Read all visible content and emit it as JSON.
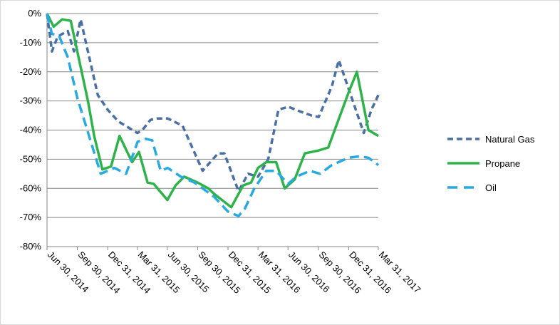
{
  "chart_data": {
    "type": "line",
    "title": "",
    "xlabel": "",
    "ylabel": "",
    "ylim": [
      -80,
      0
    ],
    "y_tick_values": [
      0,
      -10,
      -20,
      -30,
      -40,
      -50,
      -60,
      -70,
      -80
    ],
    "y_tick_labels": [
      "0%",
      "-10%",
      "-20%",
      "-30%",
      "-40%",
      "-50%",
      "-60%",
      "-70%",
      "-80%"
    ],
    "x_start": "Jun 30, 2014",
    "x_end": "Mar 31, 2017",
    "x_tick_labels": [
      "Jun 30, 2014",
      "Sep 30, 2014",
      "Dec 31, 2014",
      "Mar 31, 2015",
      "Jun 30, 2015",
      "Sep 30, 2015",
      "Dec 31, 2015",
      "Mar 31, 2016",
      "Jun 30, 2016",
      "Sep 30, 2016",
      "Dec 31, 2016",
      "Mar 31, 2017"
    ],
    "grid": "horizontal",
    "legend_position": "right",
    "series": [
      {
        "name": "Natural Gas",
        "color": "#4a6fa5",
        "dash": "dashed",
        "points": [
          [
            "Jun 30, 2014",
            0
          ],
          [
            "Jul 15, 2014",
            -13
          ],
          [
            "Aug 1, 2014",
            -8
          ],
          [
            "Aug 15, 2014",
            -7
          ],
          [
            "Sep 1, 2014",
            -6
          ],
          [
            "Sep 20, 2014",
            -13
          ],
          [
            "Oct 10, 2014",
            -2
          ],
          [
            "Dec 1, 2014",
            -28
          ],
          [
            "Dec 31, 2014",
            -33
          ],
          [
            "Feb 1, 2015",
            -37
          ],
          [
            "Mar 31, 2015",
            -41
          ],
          [
            "Apr 15, 2015",
            -40
          ],
          [
            "May 10, 2015",
            -36.5
          ],
          [
            "Jun 1, 2015",
            -36
          ],
          [
            "Jul 1, 2015",
            -36
          ],
          [
            "Aug 15, 2015",
            -38.5
          ],
          [
            "Oct 15, 2015",
            -54
          ],
          [
            "Nov 15, 2015",
            -50
          ],
          [
            "Dec 1, 2015",
            -48
          ],
          [
            "Dec 20, 2015",
            -48
          ],
          [
            "Feb 1, 2016",
            -61
          ],
          [
            "Mar 1, 2016",
            -55
          ],
          [
            "Mar 31, 2016",
            -56
          ],
          [
            "May 1, 2016",
            -50
          ],
          [
            "Jun 1, 2016",
            -33
          ],
          [
            "Jul 1, 2016",
            -32
          ],
          [
            "Aug 15, 2016",
            -34
          ],
          [
            "Sep 10, 2016",
            -35
          ],
          [
            "Oct 1, 2016",
            -35.5
          ],
          [
            "Nov 10, 2016",
            -25
          ],
          [
            "Dec 1, 2016",
            -16
          ],
          [
            "Feb 15, 2017",
            -41
          ],
          [
            "Mar 10, 2017",
            -33
          ],
          [
            "Mar 31, 2017",
            -28
          ]
        ]
      },
      {
        "name": "Propane",
        "color": "#2db34a",
        "dash": "solid",
        "points": [
          [
            "Jun 30, 2014",
            0
          ],
          [
            "Jul 20, 2014",
            -4.5
          ],
          [
            "Aug 15, 2014",
            -2
          ],
          [
            "Sep 10, 2014",
            -2.5
          ],
          [
            "Nov 1, 2014",
            -30
          ],
          [
            "Nov 20, 2014",
            -42
          ],
          [
            "Dec 15, 2014",
            -53.5
          ],
          [
            "Jan 10, 2015",
            -52.5
          ],
          [
            "Feb 5, 2015",
            -42
          ],
          [
            "Mar 15, 2015",
            -51
          ],
          [
            "Apr 5, 2015",
            -47.5
          ],
          [
            "May 1, 2015",
            -58
          ],
          [
            "May 20, 2015",
            -58.5
          ],
          [
            "Jun 30, 2015",
            -64
          ],
          [
            "Jul 25, 2015",
            -59
          ],
          [
            "Aug 20, 2015",
            -56
          ],
          [
            "Sep 30, 2015",
            -58
          ],
          [
            "Nov 1, 2015",
            -60
          ],
          [
            "Nov 20, 2015",
            -62
          ],
          [
            "Jan 10, 2016",
            -66.5
          ],
          [
            "Feb 15, 2016",
            -59
          ],
          [
            "Mar 10, 2016",
            -58
          ],
          [
            "Mar 31, 2016",
            -53
          ],
          [
            "Apr 25, 2016",
            -51
          ],
          [
            "May 25, 2016",
            -51
          ],
          [
            "Jun 20, 2016",
            -60
          ],
          [
            "Jul 20, 2016",
            -57
          ],
          [
            "Aug 20, 2016",
            -48
          ],
          [
            "Oct 1, 2016",
            -47
          ],
          [
            "Oct 30, 2016",
            -46
          ],
          [
            "Dec 31, 2016",
            -27
          ],
          [
            "Jan 25, 2017",
            -20
          ],
          [
            "Mar 1, 2017",
            -40
          ],
          [
            "Mar 31, 2017",
            -42
          ]
        ]
      },
      {
        "name": "Oil",
        "color": "#27a9e1",
        "dash": "long-dash",
        "points": [
          [
            "Jun 30, 2014",
            0
          ],
          [
            "Jul 15, 2014",
            -7
          ],
          [
            "Aug 5, 2014",
            -7.5
          ],
          [
            "Sep 1, 2014",
            -15
          ],
          [
            "Sep 30, 2014",
            -29
          ],
          [
            "Nov 10, 2014",
            -44
          ],
          [
            "Dec 10, 2014",
            -55
          ],
          [
            "Jan 20, 2015",
            -53
          ],
          [
            "Feb 25, 2015",
            -55
          ],
          [
            "Apr 1, 2015",
            -44
          ],
          [
            "Apr 25, 2015",
            -43
          ],
          [
            "May 15, 2015",
            -43.5
          ],
          [
            "Jun 10, 2015",
            -54
          ],
          [
            "Jul 1, 2015",
            -53
          ],
          [
            "Aug 10, 2015",
            -56
          ],
          [
            "Sep 20, 2015",
            -58
          ],
          [
            "Oct 15, 2015",
            -60
          ],
          [
            "Nov 20, 2015",
            -63
          ],
          [
            "Dec 31, 2015",
            -68
          ],
          [
            "Feb 1, 2016",
            -69.5
          ],
          [
            "Feb 20, 2016",
            -67
          ],
          [
            "Mar 20, 2016",
            -60
          ],
          [
            "Apr 25, 2016",
            -54
          ],
          [
            "May 25, 2016",
            -54
          ],
          [
            "Jun 30, 2016",
            -58.5
          ],
          [
            "Jul 25, 2016",
            -56
          ],
          [
            "Sep 5, 2016",
            -54
          ],
          [
            "Oct 5, 2016",
            -55
          ],
          [
            "Nov 10, 2016",
            -52
          ],
          [
            "Dec 31, 2016",
            -49.5
          ],
          [
            "Feb 1, 2017",
            -49
          ],
          [
            "Mar 1, 2017",
            -49.5
          ],
          [
            "Mar 31, 2017",
            -52
          ]
        ]
      }
    ]
  }
}
